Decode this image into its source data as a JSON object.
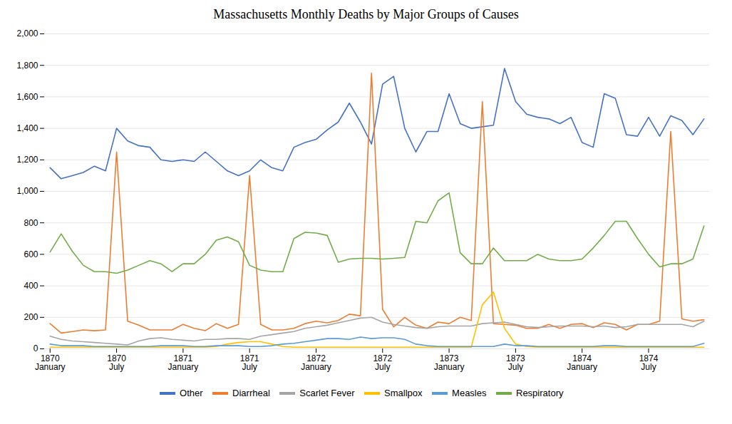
{
  "chart_data": {
    "type": "line",
    "title": "Massachusetts Monthly Deaths by Major Groups of Causes",
    "categories": [
      "1870\nJanuary",
      null,
      null,
      null,
      null,
      null,
      "1870\nJuly",
      null,
      null,
      null,
      null,
      null,
      "1871\nJanuary",
      null,
      null,
      null,
      null,
      null,
      "1871\nJuly",
      null,
      null,
      null,
      null,
      null,
      "1872\nJanuary",
      null,
      null,
      null,
      null,
      null,
      "1872\nJuly",
      null,
      null,
      null,
      null,
      null,
      "1873\nJanuary",
      null,
      null,
      null,
      null,
      null,
      "1873\nJuly",
      null,
      null,
      null,
      null,
      null,
      "1874\nJanuary",
      null,
      null,
      null,
      null,
      null,
      "1874\nJuly",
      null,
      null,
      null,
      null,
      null
    ],
    "series": [
      {
        "name": "Other",
        "color": "#4472C4",
        "values": [
          1150,
          1080,
          1100,
          1120,
          1160,
          1130,
          1400,
          1320,
          1290,
          1280,
          1200,
          1190,
          1200,
          1190,
          1250,
          1190,
          1130,
          1100,
          1130,
          1200,
          1150,
          1130,
          1280,
          1310,
          1330,
          1390,
          1440,
          1560,
          1440,
          1300,
          1680,
          1730,
          1400,
          1250,
          1380,
          1380,
          1620,
          1430,
          1400,
          1410,
          1420,
          1780,
          1570,
          1490,
          1470,
          1460,
          1430,
          1470,
          1310,
          1280,
          1620,
          1590,
          1360,
          1350,
          1470,
          1350,
          1480,
          1450,
          1360,
          1460
        ]
      },
      {
        "name": "Diarrheal",
        "color": "#ED7D31",
        "values": [
          160,
          100,
          110,
          120,
          115,
          120,
          1250,
          175,
          150,
          120,
          120,
          120,
          155,
          130,
          115,
          160,
          130,
          155,
          1100,
          155,
          120,
          120,
          130,
          160,
          175,
          165,
          180,
          220,
          210,
          1750,
          250,
          140,
          200,
          150,
          130,
          170,
          160,
          200,
          180,
          1570,
          160,
          155,
          150,
          130,
          130,
          155,
          130,
          155,
          160,
          135,
          165,
          155,
          120,
          155,
          155,
          175,
          1380,
          190,
          175,
          185
        ]
      },
      {
        "name": "Scarlet Fever",
        "color": "#A5A5A5",
        "values": [
          80,
          60,
          50,
          45,
          40,
          35,
          30,
          25,
          50,
          65,
          70,
          60,
          55,
          50,
          60,
          60,
          65,
          65,
          60,
          80,
          90,
          100,
          110,
          130,
          140,
          150,
          165,
          180,
          195,
          200,
          170,
          155,
          145,
          135,
          130,
          140,
          145,
          145,
          145,
          160,
          165,
          170,
          155,
          140,
          135,
          140,
          145,
          145,
          145,
          140,
          145,
          135,
          140,
          155,
          155,
          155,
          155,
          155,
          140,
          175
        ]
      },
      {
        "name": "Smallpox",
        "color": "#FFC000",
        "values": [
          10,
          10,
          10,
          10,
          10,
          10,
          10,
          10,
          10,
          10,
          10,
          10,
          10,
          10,
          10,
          15,
          30,
          40,
          45,
          45,
          30,
          15,
          10,
          10,
          10,
          10,
          10,
          10,
          10,
          10,
          10,
          10,
          10,
          10,
          10,
          10,
          10,
          10,
          10,
          280,
          360,
          130,
          30,
          15,
          10,
          10,
          10,
          10,
          10,
          10,
          10,
          10,
          10,
          10,
          10,
          10,
          10,
          10,
          10,
          10
        ]
      },
      {
        "name": "Measles",
        "color": "#5B9BD5",
        "values": [
          30,
          20,
          20,
          20,
          15,
          15,
          15,
          15,
          15,
          15,
          20,
          20,
          20,
          15,
          15,
          20,
          20,
          20,
          15,
          15,
          20,
          30,
          35,
          45,
          55,
          65,
          65,
          60,
          75,
          65,
          70,
          70,
          60,
          30,
          20,
          15,
          15,
          15,
          15,
          15,
          15,
          30,
          20,
          20,
          15,
          15,
          15,
          15,
          15,
          15,
          20,
          20,
          15,
          15,
          15,
          15,
          15,
          15,
          15,
          35
        ]
      },
      {
        "name": "Respiratory",
        "color": "#70AD47",
        "values": [
          615,
          730,
          620,
          530,
          490,
          490,
          480,
          500,
          530,
          560,
          540,
          490,
          540,
          540,
          600,
          690,
          710,
          680,
          530,
          500,
          490,
          490,
          700,
          740,
          735,
          720,
          550,
          570,
          575,
          575,
          570,
          575,
          580,
          810,
          800,
          940,
          990,
          610,
          540,
          540,
          640,
          560,
          560,
          560,
          600,
          570,
          560,
          560,
          570,
          640,
          720,
          810,
          810,
          700,
          600,
          520,
          540,
          540,
          570,
          780
        ]
      }
    ],
    "ylim": [
      0,
      2000
    ],
    "yticks": [
      0,
      200,
      400,
      600,
      800,
      1000,
      1200,
      1400,
      1600,
      1800,
      2000
    ],
    "grid": true,
    "legend": "bottom"
  }
}
